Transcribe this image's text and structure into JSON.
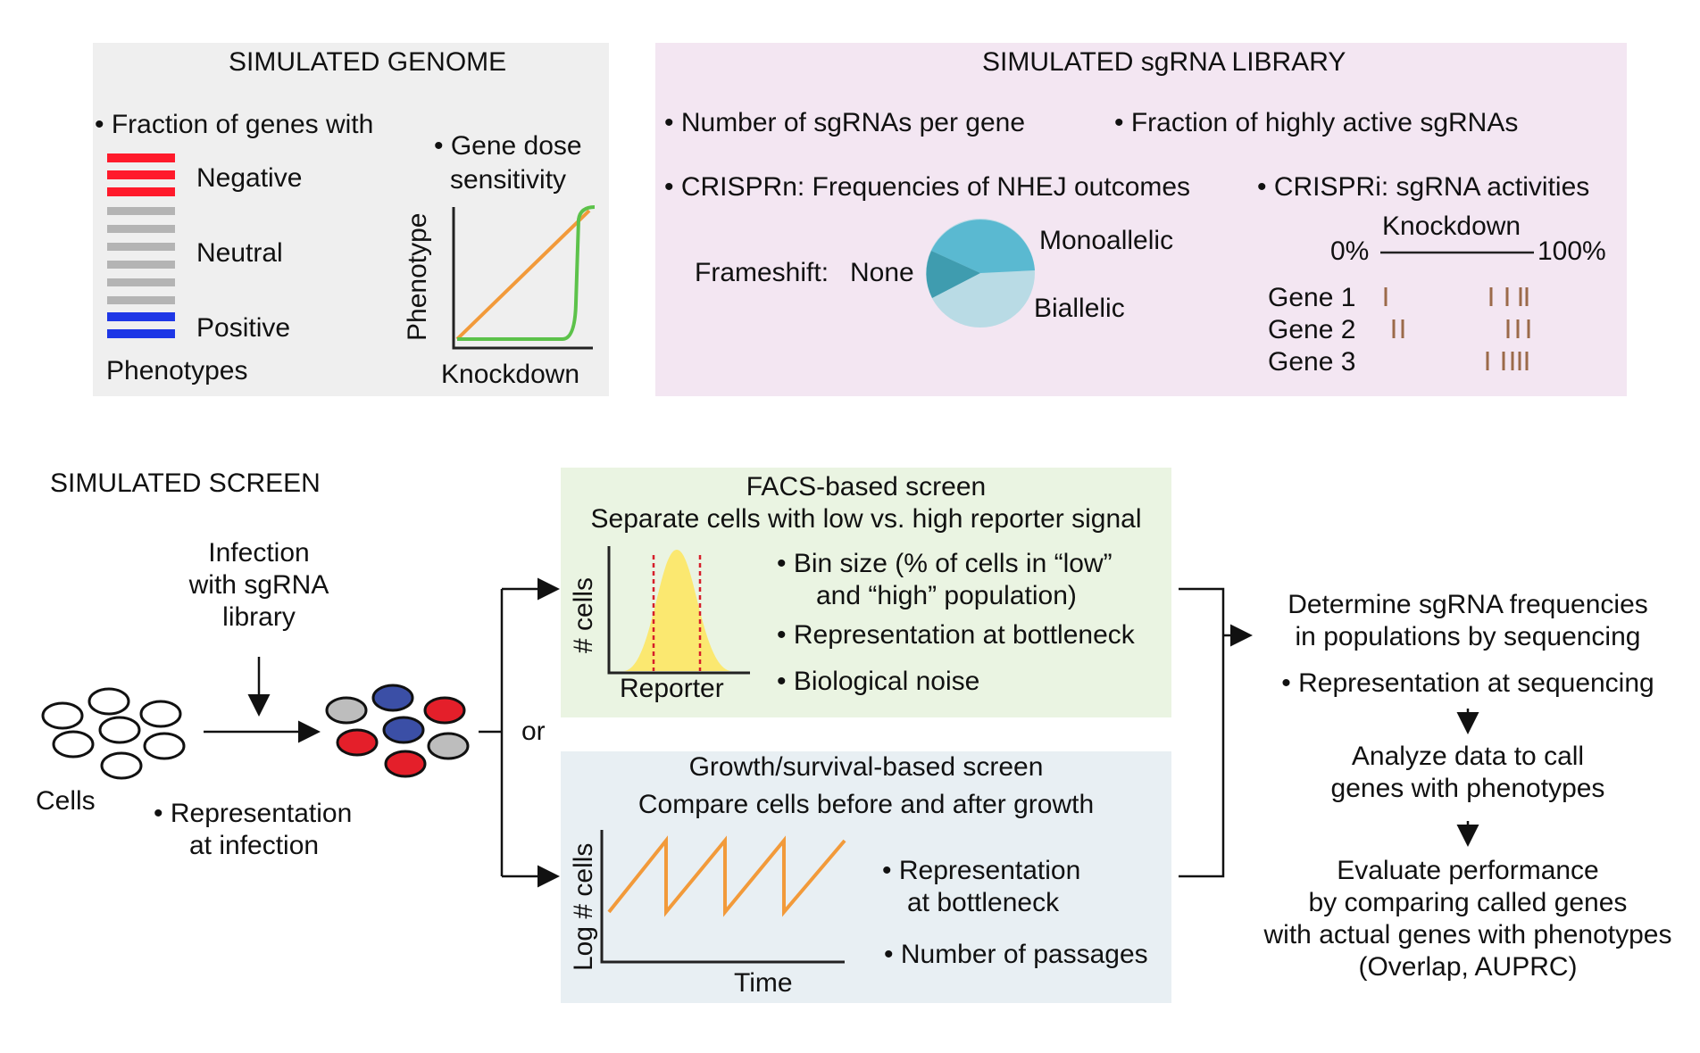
{
  "colors": {
    "genome_bg": "#efefef",
    "library_bg": "#f3e6f2",
    "facs_bg": "#eaf4e2",
    "growth_bg": "#e8eff3",
    "negative": "#ff1a2b",
    "neutral": "#b4b4b4",
    "positive": "#1e37e6",
    "orange": "#f29a3a",
    "green": "#5cc24a",
    "pie_dark": "#3f9caf",
    "pie_mid": "#5ab9d1",
    "pie_light": "#b9dbe5",
    "guide_mark": "#9b6a4a",
    "yellow": "#fbe870",
    "cell_red": "#e41f2a",
    "cell_blue": "#3b4fa6",
    "cell_gray": "#bdbdbd"
  },
  "genome": {
    "title": "SIMULATED GENOME",
    "bullet": "• Fraction of genes with",
    "negative": "Negative",
    "neutral": "Neutral",
    "positive": "Positive",
    "phenotypes": "Phenotypes",
    "dose_line1": "• Gene dose",
    "dose_line2": "sensitivity",
    "phenotype_axis": "Phenotype",
    "knockdown_axis": "Knockdown"
  },
  "library": {
    "title": "SIMULATED sgRNA LIBRARY",
    "sgrnas_per_gene": "• Number of sgRNAs per gene",
    "highly_active": "• Fraction of highly active sgRNAs",
    "crisprn": "• CRISPRn: Frequencies of NHEJ outcomes",
    "crispri": "• CRISPRi: sgRNA activities",
    "frameshift": "Frameshift:",
    "none": "None",
    "monoallelic": "Monoallelic",
    "biallelic": "Biallelic",
    "knockdown": "Knockdown",
    "pct0": "0%",
    "pct100": "100%",
    "genes": [
      "Gene 1",
      "Gene 2",
      "Gene 3"
    ]
  },
  "screen": {
    "title": "SIMULATED SCREEN",
    "infection": [
      "Infection",
      "with sgRNA",
      "library"
    ],
    "cells": "Cells",
    "rep_infection": [
      "• Representation",
      "at infection"
    ],
    "or": "or"
  },
  "facs": {
    "title": "FACS-based screen",
    "subtitle": "Separate cells with low vs. high reporter signal",
    "y_axis": "# cells",
    "x_axis": "Reporter",
    "bin_size_1": "• Bin size (% of cells in “low”",
    "bin_size_2": "and “high” population)",
    "bottleneck": "• Representation at bottleneck",
    "noise": "• Biological noise"
  },
  "growth": {
    "title": "Growth/survival-based screen",
    "subtitle": "Compare cells before and after growth",
    "y_axis": "Log # cells",
    "x_axis": "Time",
    "rep_1": "• Representation",
    "rep_2": "at bottleneck",
    "passages": "• Number of passages"
  },
  "analysis": {
    "determine_1": "Determine sgRNA frequencies",
    "determine_2": "in populations by sequencing",
    "rep_seq": "• Representation at sequencing",
    "analyze_1": "Analyze data to call",
    "analyze_2": "genes with phenotypes",
    "evaluate_1": "Evaluate performance",
    "evaluate_2": "by comparing called genes",
    "evaluate_3": "with actual genes with phenotypes",
    "evaluate_4": "(Overlap, AUPRC)"
  }
}
